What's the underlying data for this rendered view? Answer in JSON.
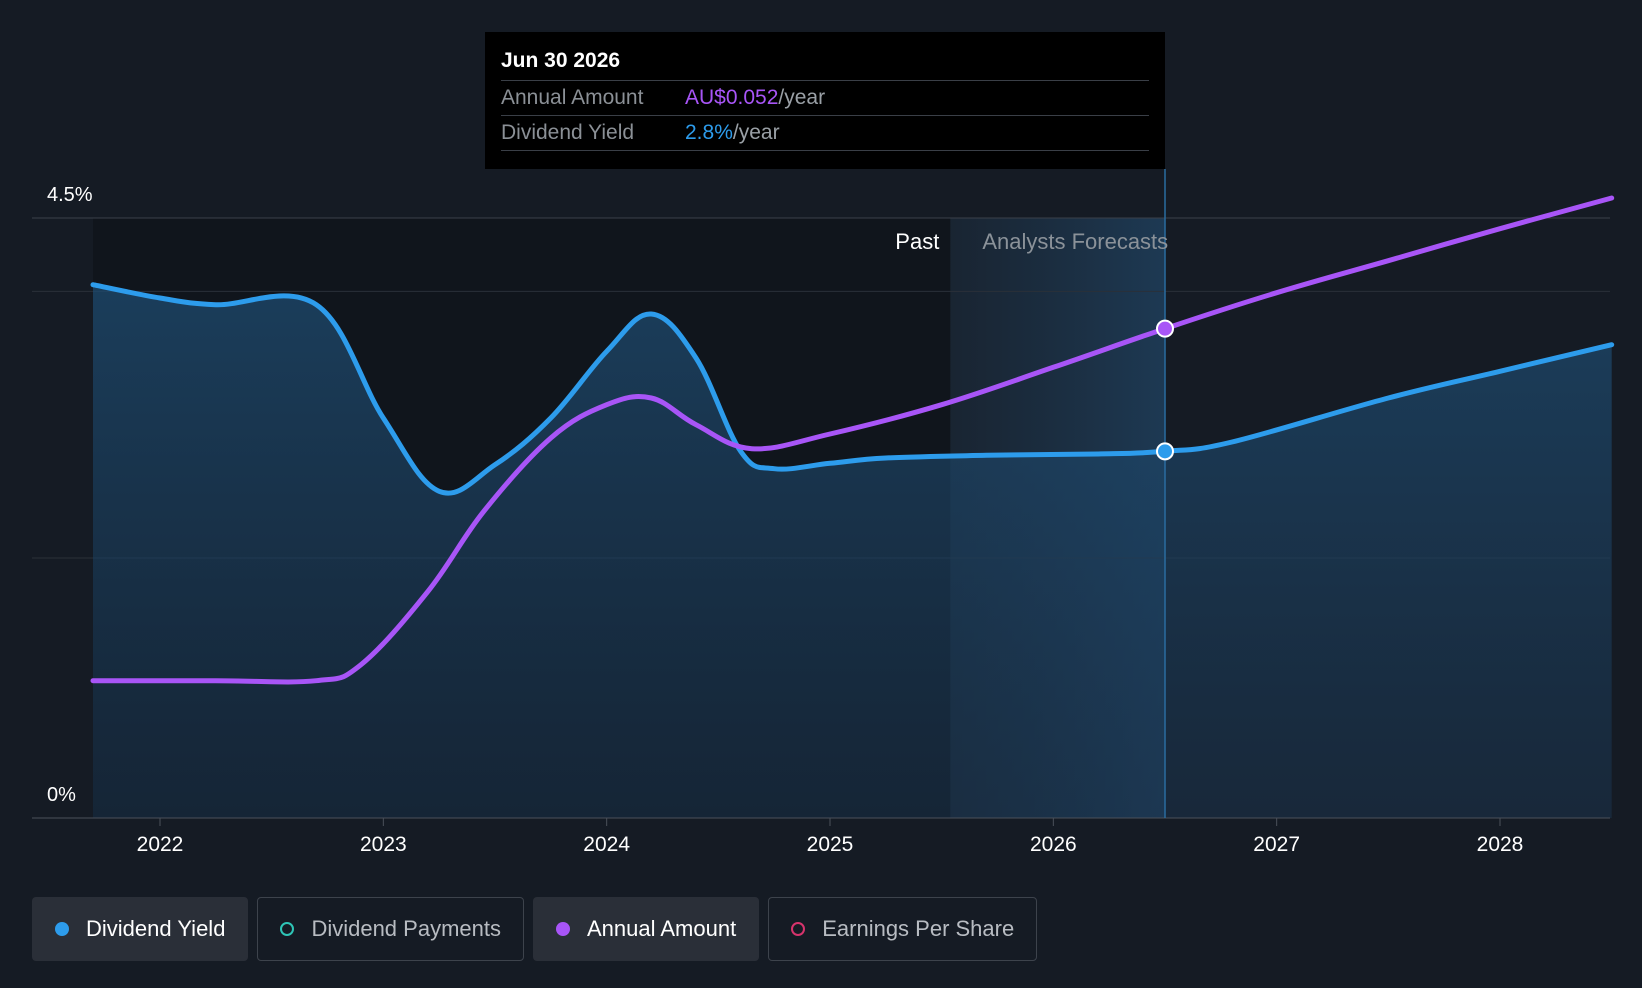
{
  "colors": {
    "background": "#151b24",
    "yield": "#2d9cec",
    "annual": "#a855f7",
    "payments": "#2ec4b6",
    "eps": "#d6336c"
  },
  "tooltip": {
    "date": "Jun 30 2026",
    "rows": [
      {
        "label": "Annual Amount",
        "value": "AU$0.052",
        "unit": "/year"
      },
      {
        "label": "Dividend Yield",
        "value": "2.8%",
        "unit": "/year"
      }
    ]
  },
  "chart_data": {
    "type": "line",
    "y_max_label": "4.5%",
    "y_min_label": "0%",
    "ylim": [
      0,
      4.5
    ],
    "xlim": [
      2021.42,
      2028.5
    ],
    "x_ticks": [
      "2022",
      "2023",
      "2024",
      "2025",
      "2026",
      "2027",
      "2028"
    ],
    "past_label": "Past",
    "forecast_label": "Analysts Forecasts",
    "forecast_start": 2025.7,
    "highlight_x": 2026.5,
    "series": [
      {
        "name": "Dividend Yield",
        "points": [
          [
            2021.7,
            4.0
          ],
          [
            2022.0,
            3.9
          ],
          [
            2022.25,
            3.85
          ],
          [
            2022.7,
            3.85
          ],
          [
            2023.0,
            3.0
          ],
          [
            2023.25,
            2.45
          ],
          [
            2023.5,
            2.65
          ],
          [
            2023.75,
            3.0
          ],
          [
            2024.0,
            3.5
          ],
          [
            2024.2,
            3.78
          ],
          [
            2024.4,
            3.45
          ],
          [
            2024.6,
            2.75
          ],
          [
            2024.75,
            2.62
          ],
          [
            2025.0,
            2.66
          ],
          [
            2025.25,
            2.7
          ],
          [
            2025.7,
            2.72
          ],
          [
            2026.2,
            2.73
          ],
          [
            2026.5,
            2.75
          ],
          [
            2026.8,
            2.82
          ],
          [
            2027.5,
            3.15
          ],
          [
            2028.0,
            3.35
          ],
          [
            2028.5,
            3.55
          ]
        ]
      },
      {
        "name": "Annual Amount",
        "points": [
          [
            2021.7,
            1.03
          ],
          [
            2022.25,
            1.03
          ],
          [
            2022.7,
            1.03
          ],
          [
            2022.9,
            1.15
          ],
          [
            2023.2,
            1.7
          ],
          [
            2023.45,
            2.3
          ],
          [
            2023.75,
            2.85
          ],
          [
            2024.0,
            3.1
          ],
          [
            2024.2,
            3.15
          ],
          [
            2024.4,
            2.95
          ],
          [
            2024.65,
            2.77
          ],
          [
            2025.0,
            2.88
          ],
          [
            2025.5,
            3.1
          ],
          [
            2026.0,
            3.38
          ],
          [
            2026.5,
            3.67
          ],
          [
            2027.0,
            3.94
          ],
          [
            2027.5,
            4.18
          ],
          [
            2028.0,
            4.42
          ],
          [
            2028.5,
            4.65
          ]
        ]
      }
    ],
    "highlight_points": [
      {
        "series": "Annual Amount",
        "x": 2026.5,
        "y": 3.67
      },
      {
        "series": "Dividend Yield",
        "x": 2026.5,
        "y": 2.75
      }
    ]
  },
  "legend": [
    {
      "label": "Dividend Yield",
      "active": true,
      "filled": true,
      "color": "#2d9cec"
    },
    {
      "label": "Dividend Payments",
      "active": false,
      "filled": false,
      "color": "#2ec4b6"
    },
    {
      "label": "Annual Amount",
      "active": true,
      "filled": true,
      "color": "#a855f7"
    },
    {
      "label": "Earnings Per Share",
      "active": false,
      "filled": false,
      "color": "#d6336c"
    }
  ]
}
